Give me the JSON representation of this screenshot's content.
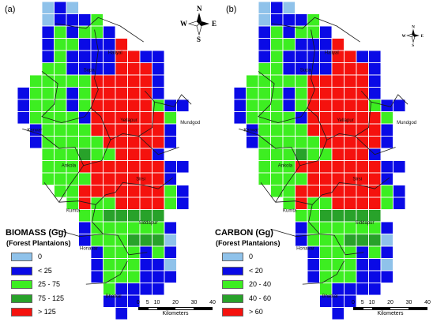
{
  "panels": [
    {
      "label": "(a)",
      "legend_title": "BIOMASS (Gg)",
      "legend_subtitle": "(Forest Plantaions)",
      "classes": [
        {
          "label": "0",
          "color": "#8fc2ea"
        },
        {
          "label": "< 25",
          "color": "#0a0ae6"
        },
        {
          "label": "25 - 75",
          "color": "#3dee21"
        },
        {
          "label": "75 - 125",
          "color": "#28a22a"
        },
        {
          "label": "> 125",
          "color": "#f5120e"
        }
      ],
      "places": [
        "Haliyal",
        "Supa",
        "Yellapur",
        "Mundgod",
        "Karwar",
        "Ankola",
        "Sirsi",
        "Kumta",
        "Siddapur",
        "Honavar",
        "Bhatkal"
      ]
    },
    {
      "label": "(b)",
      "legend_title": "CARBON (Gg)",
      "legend_subtitle": "(Forest Plantaions)",
      "classes": [
        {
          "label": "0",
          "color": "#8fc2ea"
        },
        {
          "label": "< 20",
          "color": "#0a0ae6"
        },
        {
          "label": "20 - 40",
          "color": "#3dee21"
        },
        {
          "label": "40 - 60",
          "color": "#28a22a"
        },
        {
          "label": "> 60",
          "color": "#f5120e"
        }
      ],
      "places": [
        "Haliyal",
        "Supa",
        "Yellapur",
        "Mundgod",
        "Karwar",
        "Ankola",
        "Sirsi",
        "Kumta",
        "Siddapur",
        "Honavar",
        "Bhatkal"
      ]
    }
  ],
  "north_arrow": {
    "n": "N",
    "s": "S",
    "e": "E",
    "w": "W"
  },
  "scalebar": {
    "ticks": [
      "0",
      "5",
      "10",
      "20",
      "30",
      "40"
    ],
    "units": "Kilometers"
  },
  "grid": [
    "..010..........",
    "..01112........",
    "..121221.......",
    "..1221114......",
    "..1211114411...",
    "..2211114441...",
    ".22222444441...",
    "122212444441...",
    "12221244444211.",
    "1222214444442..",
    ".122224444441..",
    ".122222444441..",
    "..2223224441...",
    "..222444444411.",
    "..22224444441..",
    "...22444444421.",
    "....2422444421.",
    ".....2233333...",
    ".....12222221..",
    ".....12223330..",
    "......1222121..",
    "......1222110..",
    "......1222111..",
    ".......21111...",
    ".......111.....",
    "........1......"
  ]
}
